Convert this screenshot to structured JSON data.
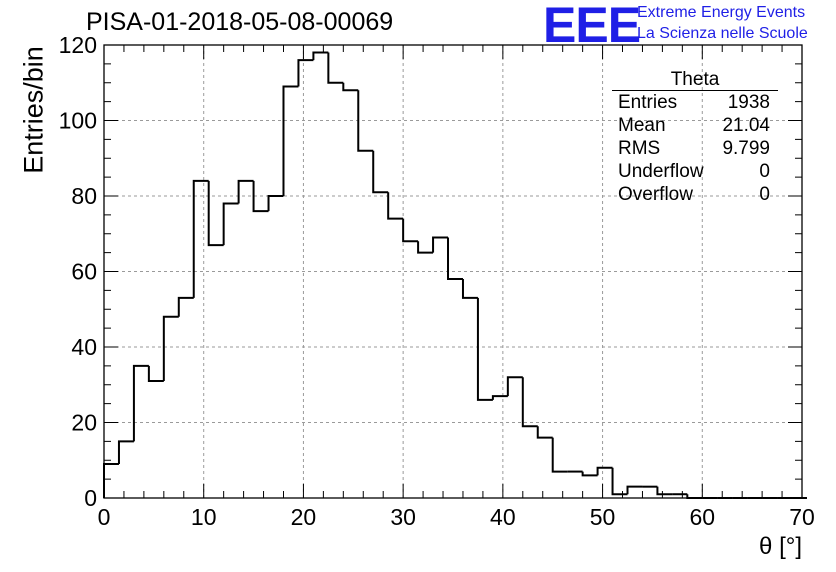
{
  "title": "PISA-01-2018-05-08-00069",
  "logo": {
    "mark": "EEE",
    "line1": "Extreme Energy Events",
    "line2": "La Scienza nelle Scuole",
    "color": "#1f1fe6"
  },
  "stats": {
    "name": "Theta",
    "rows": [
      {
        "label": "Entries",
        "value": "1938"
      },
      {
        "label": "Mean",
        "value": "21.04"
      },
      {
        "label": "RMS",
        "value": "9.799"
      },
      {
        "label": "Underflow",
        "value": "0"
      },
      {
        "label": "Overflow",
        "value": "0"
      }
    ]
  },
  "chart_data": {
    "type": "bar",
    "style": "step-histogram",
    "title": "PISA-01-2018-05-08-00069",
    "xlabel": "θ [°]",
    "ylabel": "Entries/bin",
    "xlim": [
      0,
      70
    ],
    "ylim": [
      0,
      120
    ],
    "xticks": [
      0,
      10,
      20,
      30,
      40,
      50,
      60,
      70
    ],
    "yticks": [
      0,
      20,
      40,
      60,
      80,
      100,
      120
    ],
    "grid": true,
    "bin_width": 1.5,
    "bin_start": 0,
    "values": [
      9,
      15,
      35,
      31,
      48,
      53,
      84,
      67,
      78,
      84,
      76,
      80,
      109,
      116,
      118,
      110,
      108,
      92,
      81,
      74,
      68,
      65,
      69,
      58,
      53,
      26,
      27,
      32,
      19,
      16,
      7,
      7,
      6,
      8,
      1,
      3,
      3,
      1,
      1,
      0,
      0,
      0,
      0,
      0,
      0,
      0,
      0
    ],
    "line_color": "#000000"
  }
}
